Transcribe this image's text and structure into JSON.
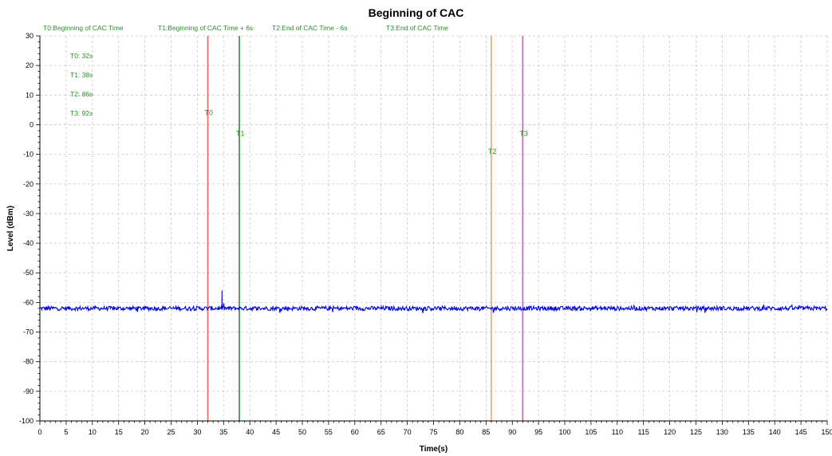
{
  "chart_data": {
    "type": "line",
    "title": "Beginning of CAC",
    "xlabel": "Time(s)",
    "ylabel": "Level (dBm)",
    "xlim": [
      0,
      150
    ],
    "ylim": [
      -100,
      30
    ],
    "xticks": [
      0,
      5,
      10,
      15,
      20,
      25,
      30,
      35,
      40,
      45,
      50,
      55,
      60,
      65,
      70,
      75,
      80,
      85,
      90,
      95,
      100,
      105,
      110,
      115,
      120,
      125,
      130,
      135,
      140,
      145,
      150
    ],
    "yticks": [
      30,
      20,
      10,
      0,
      -10,
      -20,
      -30,
      -40,
      -50,
      -60,
      -70,
      -80,
      -90,
      -100
    ],
    "grid": true,
    "legend_entries": [
      {
        "text": "T0:Beginning of CAC Time"
      },
      {
        "text": "T1:Beginning of CAC Time + 6s"
      },
      {
        "text": "T2:End of CAC Time - 6s"
      },
      {
        "text": "T3:End of CAC Time"
      }
    ],
    "annotations": [
      "T0: 32s",
      "T1: 38s",
      "T2: 86s",
      "T3: 92s"
    ],
    "markers": [
      {
        "label": "T0",
        "x": 32,
        "label_y": 4,
        "color": "#e8625e"
      },
      {
        "label": "T1",
        "x": 38,
        "label_y": -3,
        "color": "#2e8b2e"
      },
      {
        "label": "T2",
        "x": 86,
        "label_y": -9,
        "color": "#f4a460"
      },
      {
        "label": "T3",
        "x": 92,
        "label_y": -3,
        "color": "#cc55cc"
      }
    ],
    "series": [
      {
        "color": "#0000dd",
        "baseline": -62,
        "noise": 1.2,
        "spikes": [
          {
            "x": 34.7,
            "y": -56
          }
        ],
        "x_range": [
          0,
          150
        ]
      }
    ]
  }
}
